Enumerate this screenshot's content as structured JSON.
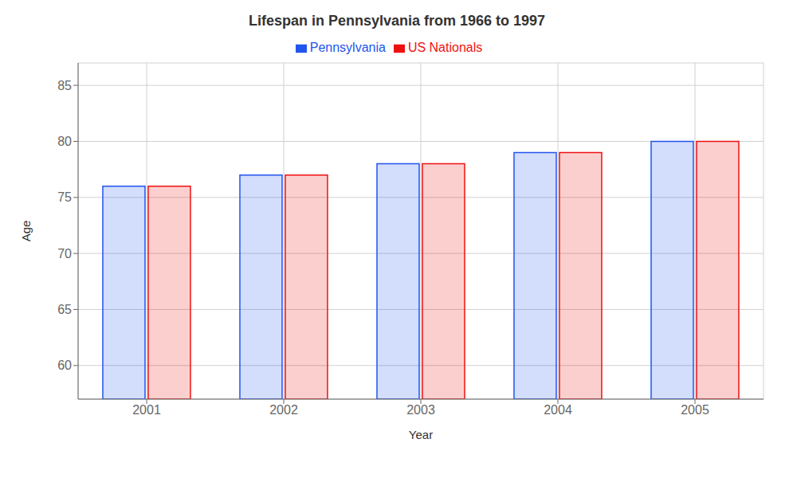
{
  "chart_data": {
    "type": "bar",
    "title": "Lifespan in Pennsylvania from 1966 to 1997",
    "xlabel": "Year",
    "ylabel": "Age",
    "categories": [
      "2001",
      "2002",
      "2003",
      "2004",
      "2005"
    ],
    "series": [
      {
        "name": "Pennsylvania",
        "color": "#2255ee",
        "values": [
          76,
          77,
          78,
          79,
          80
        ]
      },
      {
        "name": "US Nationals",
        "color": "#ee1111",
        "values": [
          76,
          77,
          78,
          79,
          80
        ]
      }
    ],
    "ylim": [
      57,
      87
    ],
    "yticks": [
      60,
      65,
      70,
      75,
      80,
      85
    ],
    "grid": true,
    "legend": "top"
  }
}
